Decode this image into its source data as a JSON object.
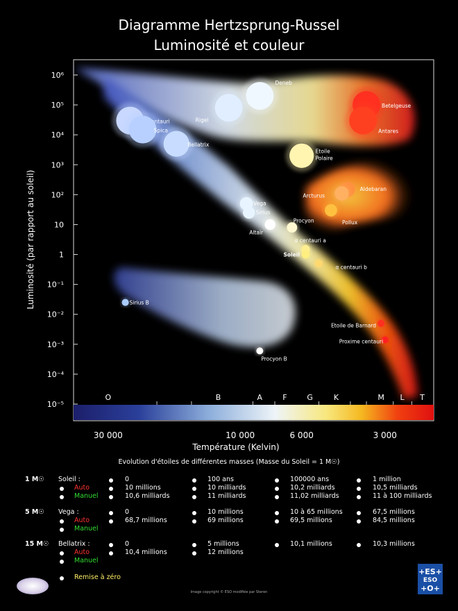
{
  "header": {
    "title_line1": "Diagramme Hertzsprung-Russel",
    "title_line2": "Luminosité et couleur"
  },
  "chart_data": {
    "type": "scatter",
    "title": "Diagramme Hertzsprung-Russel - Luminosité et couleur",
    "xlabel": "Température (Kelvin)",
    "ylabel": "Luminosité (par rapport au soleil)",
    "x_scale": "log",
    "x_reversed": true,
    "y_scale": "log",
    "xlim": [
      40000,
      2000
    ],
    "ylim": [
      1e-05,
      1000000
    ],
    "x_ticks": [
      {
        "label": "30 000",
        "value": 30000
      },
      {
        "label": "10 000",
        "value": 10000
      },
      {
        "label": "6 000",
        "value": 6000
      },
      {
        "label": "3 000",
        "value": 3000
      }
    ],
    "y_ticks": [
      "10⁶",
      "10⁵",
      "10⁴",
      "10³",
      "10²",
      "10",
      "1",
      "10⁻¹",
      "10⁻²",
      "10⁻³",
      "10⁻⁴",
      "10⁻⁵"
    ],
    "spectral_classes": [
      {
        "label": "O",
        "temp": 30000
      },
      {
        "label": "B",
        "temp": 12000
      },
      {
        "label": "A",
        "temp": 8500
      },
      {
        "label": "F",
        "temp": 6900
      },
      {
        "label": "G",
        "temp": 5600
      },
      {
        "label": "K",
        "temp": 4500
      },
      {
        "label": "M",
        "temp": 3100
      },
      {
        "label": "L",
        "temp": 2600
      },
      {
        "label": "T",
        "temp": 2200
      }
    ],
    "labeled_stars": [
      {
        "name": "Deneb",
        "temp": 8500,
        "lum": 200000,
        "color": "#f0f8ff"
      },
      {
        "name": "β Centauri",
        "temp": 25000,
        "lum": 30000,
        "color": "#c8d8ff"
      },
      {
        "name": "Rigel",
        "temp": 11000,
        "lum": 80000,
        "color": "#e0eeff"
      },
      {
        "name": "Spica",
        "temp": 22500,
        "lum": 15000,
        "color": "#b8d0ff"
      },
      {
        "name": "Bellatrix",
        "temp": 17000,
        "lum": 5000,
        "color": "#c8dcff"
      },
      {
        "name": "Betelgeuse",
        "temp": 3500,
        "lum": 100000,
        "color": "#ff3020"
      },
      {
        "name": "Antares",
        "temp": 3600,
        "lum": 30000,
        "color": "#ff4020"
      },
      {
        "name": "Etoile Polaire",
        "temp": 6000,
        "lum": 2000,
        "color": "#fff4b0"
      },
      {
        "name": "Aldebaran",
        "temp": 4100,
        "lum": 150,
        "color": "#ff9040"
      },
      {
        "name": "Arcturus",
        "temp": 4300,
        "lum": 110,
        "color": "#ffb060"
      },
      {
        "name": "Pollux",
        "temp": 4700,
        "lum": 30,
        "color": "#ffc040"
      },
      {
        "name": "Vega",
        "temp": 9500,
        "lum": 50,
        "color": "#e8f4ff"
      },
      {
        "name": "Sirius",
        "temp": 9300,
        "lum": 25,
        "color": "#e8f4ff"
      },
      {
        "name": "Procyon",
        "temp": 6500,
        "lum": 8,
        "color": "#fff8d0"
      },
      {
        "name": "Altaïr",
        "temp": 7800,
        "lum": 10,
        "color": "#ffffff"
      },
      {
        "name": "α centauri a",
        "temp": 5800,
        "lum": 1.5,
        "color": "#ffee90"
      },
      {
        "name": "Soleil",
        "temp": 5800,
        "lum": 1,
        "color": "#ffee80"
      },
      {
        "name": "α centauri b",
        "temp": 5200,
        "lum": 0.5,
        "color": "#ffd870"
      },
      {
        "name": "Sirius B",
        "temp": 26000,
        "lum": 0.025,
        "color": "#aaccff"
      },
      {
        "name": "Etoile de Barnard",
        "temp": 3100,
        "lum": 0.005,
        "color": "#ff3020"
      },
      {
        "name": "Proxime centauri",
        "temp": 3000,
        "lum": 0.0014,
        "color": "#ff2020"
      },
      {
        "name": "Procyon B",
        "temp": 8500,
        "lum": 0.0006,
        "color": "#ffffff"
      }
    ],
    "grid": false
  },
  "evolution": {
    "heading": "Evolution d'étoiles de différentes masses (Masse du Soleil = 1 M☉)",
    "auto_label": "Auto",
    "manual_label": "Manuel",
    "reset_label": "Remise à zéro",
    "groups": [
      {
        "mass": "1 M☉",
        "star": "Soleil :",
        "row1": [
          "0",
          "100 ans",
          "100000 ans",
          "1 million"
        ],
        "row2": [
          "10 millions",
          "10 milliards",
          "10,2 milliards",
          "10,5 milliards"
        ],
        "row3": [
          "10,6 milliards",
          "11 milliards",
          "11,02 milliards",
          "11 à 100 milliards"
        ]
      },
      {
        "mass": "5 M☉",
        "star": "Vega :",
        "row1": [
          "0",
          "10 millions",
          "10 à 65 millions",
          "67,5 millions"
        ],
        "row2": [
          "68,7 millions",
          "69 millions",
          "69,5 millions",
          "84,5 millions"
        ]
      },
      {
        "mass": "15 M☉",
        "star": "Bellatrix :",
        "row1": [
          "0",
          "5 millions",
          "10,1 millions",
          "10,3 millions"
        ],
        "row2": [
          "10,4 millions",
          "12 millions"
        ]
      }
    ]
  },
  "footer": {
    "credit": "Image copyright © ESO modifiée par Steren",
    "eso_logo": "ESO"
  },
  "colors": {
    "background": "#000000",
    "auto": "#ff3333",
    "manual": "#33dd33",
    "reset": "#ffee66"
  }
}
